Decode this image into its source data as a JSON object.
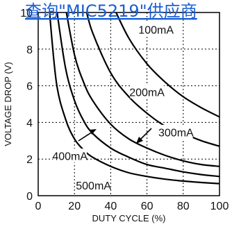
{
  "header_link": {
    "text": "查询\"MIC5219\"供应商"
  },
  "chart_data": {
    "type": "line",
    "xlabel": "DUTY CYCLE (%)",
    "ylabel": "VOLTAGE DROP (V)",
    "xlim": [
      0,
      100
    ],
    "ylim": [
      0,
      10
    ],
    "x_ticks": [
      "0",
      "20",
      "40",
      "60",
      "80",
      "100"
    ],
    "y_ticks": [
      "0",
      "2",
      "4",
      "6",
      "8",
      "10"
    ],
    "grid": true,
    "colors": {
      "curves": "#000000",
      "link": "#1a5fd6"
    },
    "series": [
      {
        "name": "100mA",
        "x": [
          42,
          50,
          60,
          70,
          80,
          90,
          100
        ],
        "y": [
          10.2,
          8.6,
          7.2,
          6.2,
          5.4,
          4.8,
          4.3
        ]
      },
      {
        "name": "200mA",
        "x": [
          26,
          30,
          40,
          50,
          60,
          70,
          80,
          90,
          100
        ],
        "y": [
          10.3,
          8.9,
          6.7,
          5.4,
          4.5,
          3.8,
          3.4,
          3.0,
          2.7
        ]
      },
      {
        "name": "300mA",
        "x": [
          15,
          20,
          25,
          30,
          40,
          50,
          60,
          70,
          80,
          90,
          100
        ],
        "y": [
          10.3,
          7.7,
          6.2,
          5.2,
          3.9,
          3.1,
          2.6,
          2.2,
          1.9,
          1.7,
          1.6
        ]
      },
      {
        "name": "400mA",
        "x": [
          10,
          15,
          20,
          25,
          30,
          40,
          50,
          60,
          70,
          80,
          90,
          100
        ],
        "y": [
          10.3,
          7.0,
          5.2,
          4.1,
          3.4,
          2.6,
          2.1,
          1.7,
          1.5,
          1.3,
          1.15,
          1.05
        ]
      },
      {
        "name": "500mA",
        "x": [
          6,
          10,
          15,
          20,
          25,
          30,
          40,
          50,
          60,
          70,
          80,
          90,
          100
        ],
        "y": [
          10.3,
          6.2,
          4.2,
          3.1,
          2.5,
          2.1,
          1.6,
          1.25,
          1.05,
          0.9,
          0.8,
          0.72,
          0.66
        ]
      }
    ],
    "labels": [
      {
        "text": "100mA",
        "x": 65,
        "y": 9.05
      },
      {
        "text": "200mA",
        "x": 60,
        "y": 5.65
      },
      {
        "text": "300mA",
        "x": 76,
        "y": 3.45
      },
      {
        "text": "400mA",
        "x": 17.5,
        "y": 2.15
      },
      {
        "text": "500mA",
        "x": 30.5,
        "y": 0.55
      }
    ]
  }
}
